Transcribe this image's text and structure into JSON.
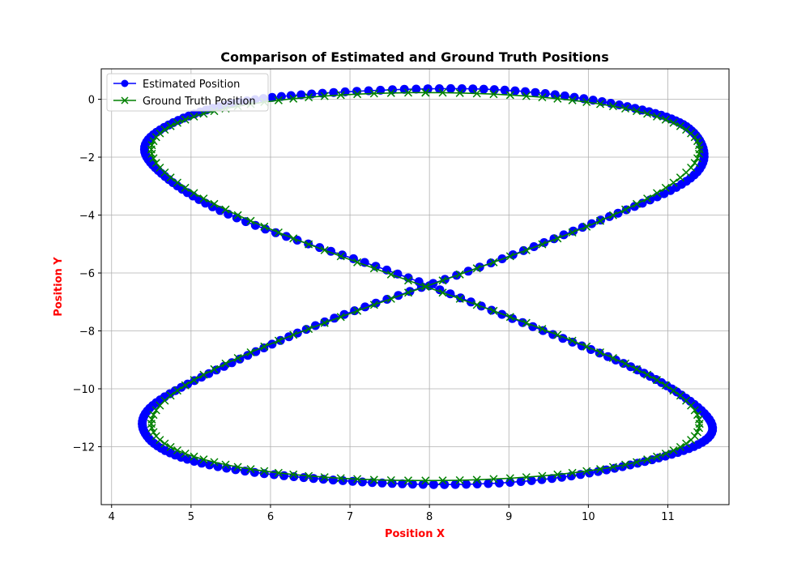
{
  "chart_data": {
    "type": "line",
    "title": "Comparison of Estimated and Ground Truth Positions",
    "xlabel": "Position X",
    "ylabel": "Position Y",
    "xlim": [
      3.87,
      11.77
    ],
    "ylim": [
      -14.0,
      1.05
    ],
    "x_ticks": [
      4,
      5,
      6,
      7,
      8,
      9,
      10,
      11
    ],
    "y_ticks": [
      0,
      -2,
      -4,
      -6,
      -8,
      -10,
      -12
    ],
    "grid": true,
    "legend_position": "top-left",
    "label_color": "#ff0000",
    "series": [
      {
        "name": "Estimated Position",
        "color": "#0000ff",
        "marker": "circle",
        "amp_x": 3.55,
        "amp_y": 6.78,
        "noise": 0.05,
        "n_points": 320
      },
      {
        "name": "Ground Truth Position",
        "color": "#008000",
        "marker": "x",
        "amp_x": 3.45,
        "amp_y": 6.7,
        "noise": 0.0,
        "n_points": 200
      }
    ],
    "center": {
      "x": 7.95,
      "y": -6.47
    },
    "curve": "x = cx + ax*sin(2t), y = cy + ay*cos(t)"
  }
}
